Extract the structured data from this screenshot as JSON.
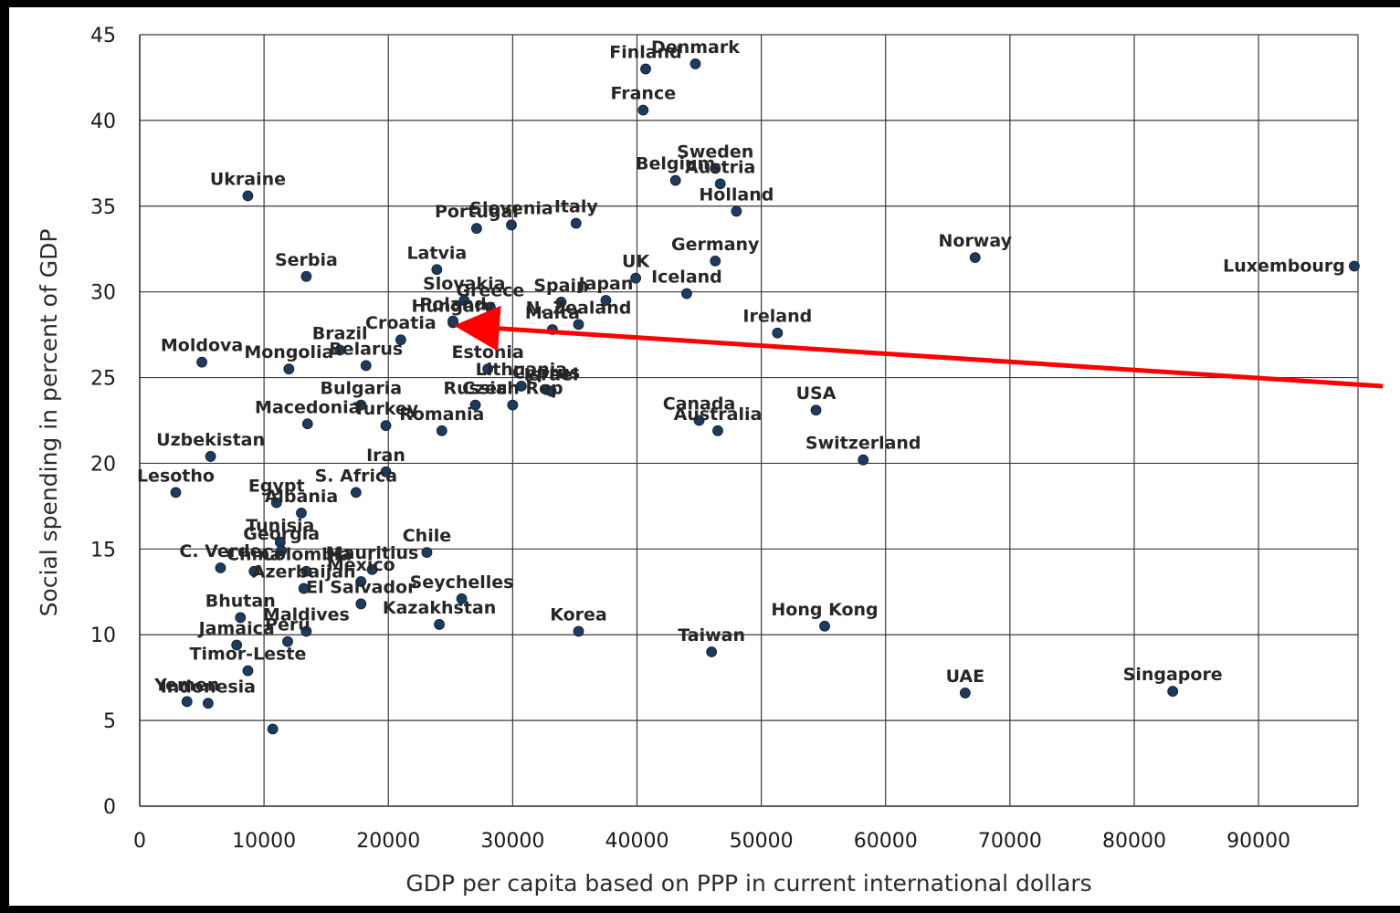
{
  "chart_data": {
    "type": "scatter",
    "title": "",
    "xlabel": "GDP per capita based on PPP in current international dollars",
    "ylabel": "Social spending in percent of GDP",
    "xlim": [
      0,
      98000
    ],
    "ylim": [
      0,
      45
    ],
    "x_ticks": [
      0,
      10000,
      20000,
      30000,
      40000,
      50000,
      60000,
      70000,
      80000,
      90000
    ],
    "y_ticks": [
      0,
      5,
      10,
      15,
      20,
      25,
      30,
      35,
      40,
      45
    ],
    "grid": true,
    "legend": "none",
    "marker_color": "#1f3a5f",
    "points": [
      {
        "label": "Finland",
        "x": 40700,
        "y": 43.0
      },
      {
        "label": "Denmark",
        "x": 44700,
        "y": 43.3
      },
      {
        "label": "France",
        "x": 40500,
        "y": 40.6
      },
      {
        "label": "Sweden",
        "x": 46300,
        "y": 37.2
      },
      {
        "label": "Austria",
        "x": 46700,
        "y": 36.3
      },
      {
        "label": "Belgium",
        "x": 43100,
        "y": 36.5
      },
      {
        "label": "Holland",
        "x": 48000,
        "y": 34.7
      },
      {
        "label": "Ukraine",
        "x": 8700,
        "y": 35.6
      },
      {
        "label": "Slovenia",
        "x": 29900,
        "y": 33.9
      },
      {
        "label": "Italy",
        "x": 35100,
        "y": 34.0
      },
      {
        "label": "Portugal",
        "x": 27100,
        "y": 33.7
      },
      {
        "label": "Germany",
        "x": 46300,
        "y": 31.8
      },
      {
        "label": "Norway",
        "x": 67200,
        "y": 32.0
      },
      {
        "label": "Luxembourg",
        "x": 97700,
        "y": 31.5
      },
      {
        "label": "Latvia",
        "x": 23900,
        "y": 31.3
      },
      {
        "label": "UK",
        "x": 39900,
        "y": 30.8
      },
      {
        "label": "Iceland",
        "x": 44000,
        "y": 29.9
      },
      {
        "label": "Serbia",
        "x": 13400,
        "y": 30.9
      },
      {
        "label": "Greece",
        "x": 28200,
        "y": 29.1
      },
      {
        "label": "Slovakia",
        "x": 26100,
        "y": 29.5
      },
      {
        "label": "Spain",
        "x": 33900,
        "y": 29.4
      },
      {
        "label": "Japan",
        "x": 37500,
        "y": 29.5
      },
      {
        "label": "Hungary",
        "x": 25200,
        "y": 28.2
      },
      {
        "label": "N. Zealand",
        "x": 35300,
        "y": 28.1
      },
      {
        "label": "Malta",
        "x": 33200,
        "y": 27.8
      },
      {
        "label": "Croatia",
        "x": 21000,
        "y": 27.2
      },
      {
        "label": "Poland",
        "x": 25200,
        "y": 28.3
      },
      {
        "label": "Ireland",
        "x": 51300,
        "y": 27.6
      },
      {
        "label": "Brazil",
        "x": 16100,
        "y": 26.6
      },
      {
        "label": "Belarus",
        "x": 18200,
        "y": 25.7
      },
      {
        "label": "Moldova",
        "x": 5000,
        "y": 25.9
      },
      {
        "label": "Mongolia",
        "x": 12000,
        "y": 25.5
      },
      {
        "label": "Estonia",
        "x": 28000,
        "y": 25.5
      },
      {
        "label": "Lithuania",
        "x": 30700,
        "y": 24.5
      },
      {
        "label": "Cyprus",
        "x": 32700,
        "y": 24.3
      },
      {
        "label": "Bulgaria",
        "x": 17800,
        "y": 23.4
      },
      {
        "label": "Israel",
        "x": 33100,
        "y": 24.2
      },
      {
        "label": "Czech Rep",
        "x": 30000,
        "y": 23.4
      },
      {
        "label": "Macedonia",
        "x": 13500,
        "y": 22.3
      },
      {
        "label": "Russia",
        "x": 27000,
        "y": 23.4
      },
      {
        "label": "Canada",
        "x": 45000,
        "y": 22.5
      },
      {
        "label": "USA",
        "x": 54400,
        "y": 23.1
      },
      {
        "label": "Australia",
        "x": 46500,
        "y": 21.9
      },
      {
        "label": "Turkey",
        "x": 19800,
        "y": 22.2
      },
      {
        "label": "Uzbekistan",
        "x": 5700,
        "y": 20.4
      },
      {
        "label": "Switzerland",
        "x": 58200,
        "y": 20.2
      },
      {
        "label": "Romania",
        "x": 24300,
        "y": 21.9
      },
      {
        "label": "Lesotho",
        "x": 2900,
        "y": 18.3
      },
      {
        "label": "Iran",
        "x": 19800,
        "y": 19.5
      },
      {
        "label": "Egypt",
        "x": 11000,
        "y": 17.7
      },
      {
        "label": "S. Africa",
        "x": 17400,
        "y": 18.3
      },
      {
        "label": "Albania",
        "x": 13000,
        "y": 17.1
      },
      {
        "label": "Tunisia",
        "x": 11300,
        "y": 15.4
      },
      {
        "label": "Chile",
        "x": 23100,
        "y": 14.8
      },
      {
        "label": "Georgia",
        "x": 11400,
        "y": 14.9
      },
      {
        "label": "Colombia",
        "x": 13400,
        "y": 13.7
      },
      {
        "label": "Mauritius",
        "x": 18700,
        "y": 13.8
      },
      {
        "label": "C. Verde",
        "x": 6500,
        "y": 13.9
      },
      {
        "label": "China",
        "x": 9200,
        "y": 13.7
      },
      {
        "label": "Mexico",
        "x": 17800,
        "y": 13.1
      },
      {
        "label": "Azerbaijan",
        "x": 13200,
        "y": 12.7
      },
      {
        "label": "Seychelles",
        "x": 25900,
        "y": 12.1
      },
      {
        "label": "El Salvador",
        "x": 17800,
        "y": 11.8
      },
      {
        "label": "Kazakhstan",
        "x": 24100,
        "y": 10.6
      },
      {
        "label": "Maldives",
        "x": 13400,
        "y": 10.2
      },
      {
        "label": "Korea",
        "x": 35300,
        "y": 10.2
      },
      {
        "label": "Hong Kong",
        "x": 55100,
        "y": 10.5
      },
      {
        "label": "Bhutan",
        "x": 8100,
        "y": 11.0
      },
      {
        "label": "Peru",
        "x": 11900,
        "y": 9.6
      },
      {
        "label": "Taiwan",
        "x": 46000,
        "y": 9.0
      },
      {
        "label": "Jamaica",
        "x": 7800,
        "y": 9.4
      },
      {
        "label": "Timor-Leste",
        "x": 8700,
        "y": 7.9
      },
      {
        "label": "Yemen",
        "x": 3800,
        "y": 6.1
      },
      {
        "label": "Indonesia",
        "x": 5500,
        "y": 6.0
      },
      {
        "label": "UAE",
        "x": 66400,
        "y": 6.6
      },
      {
        "label": "Singapore",
        "x": 83100,
        "y": 6.7
      },
      {
        "label": "",
        "x": 10700,
        "y": 4.5
      }
    ],
    "annotations": [
      {
        "type": "arrow",
        "color": "#ff0000",
        "from": [
          100000,
          24.5
        ],
        "to": [
          26000,
          28.0
        ]
      }
    ]
  }
}
